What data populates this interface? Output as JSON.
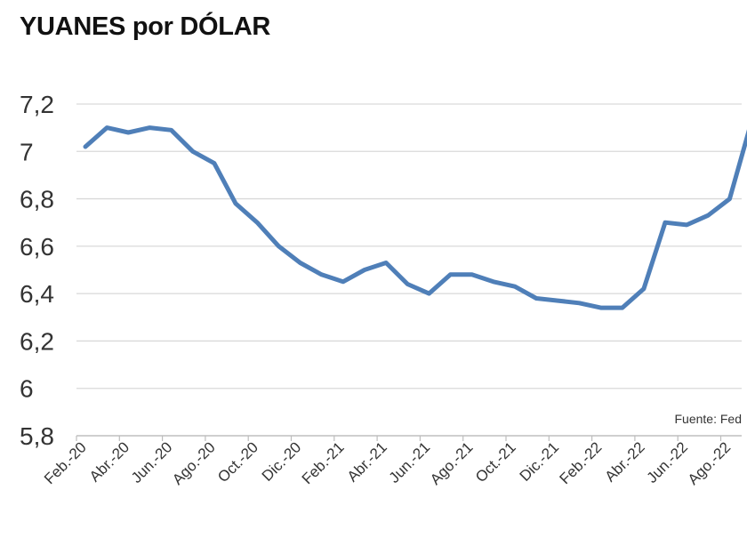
{
  "chart_data": {
    "type": "line",
    "title": "YUANES por DÓLAR",
    "source": "Fuente: Fed",
    "ylim": [
      5.8,
      7.2
    ],
    "yticks": [
      5.8,
      6,
      6.2,
      6.4,
      6.6,
      6.8,
      7,
      7.2
    ],
    "ytick_labels": [
      "5,8",
      "6",
      "6,2",
      "6,4",
      "6,6",
      "6,8",
      "7",
      "7,2"
    ],
    "xtick_labels": [
      "Feb.-20",
      "Abr.-20",
      "Jun.-20",
      "Ago.-20",
      "Oct.-20",
      "Dic.-20",
      "Feb.-21",
      "Abr.-21",
      "Jun.-21",
      "Ago.-21",
      "Oct.-21",
      "Dic.-21",
      "Feb.-22",
      "Abr.-22",
      "Jun.-22",
      "Ago.-22"
    ],
    "grid": true,
    "line_color": "#4f7fb8",
    "x": [
      "Feb.-20",
      "Mar.-20",
      "Abr.-20",
      "May.-20",
      "Jun.-20",
      "Jul.-20",
      "Ago.-20",
      "Sep.-20",
      "Oct.-20",
      "Nov.-20",
      "Dic.-20",
      "Ene.-21",
      "Feb.-21",
      "Mar.-21",
      "Abr.-21",
      "May.-21",
      "Jun.-21",
      "Jul.-21",
      "Ago.-21",
      "Sep.-21",
      "Oct.-21",
      "Nov.-21",
      "Dic.-21",
      "Ene.-22",
      "Feb.-22",
      "Mar.-22",
      "Abr.-22",
      "May.-22",
      "Jun.-22",
      "Jul.-22",
      "Ago.-22",
      "Sep.-22"
    ],
    "values": [
      7.02,
      7.1,
      7.08,
      7.1,
      7.09,
      7.0,
      6.95,
      6.78,
      6.7,
      6.6,
      6.53,
      6.48,
      6.45,
      6.5,
      6.53,
      6.44,
      6.4,
      6.48,
      6.48,
      6.45,
      6.43,
      6.38,
      6.37,
      6.36,
      6.34,
      6.34,
      6.42,
      6.7,
      6.69,
      6.73,
      6.8,
      7.12
    ]
  }
}
